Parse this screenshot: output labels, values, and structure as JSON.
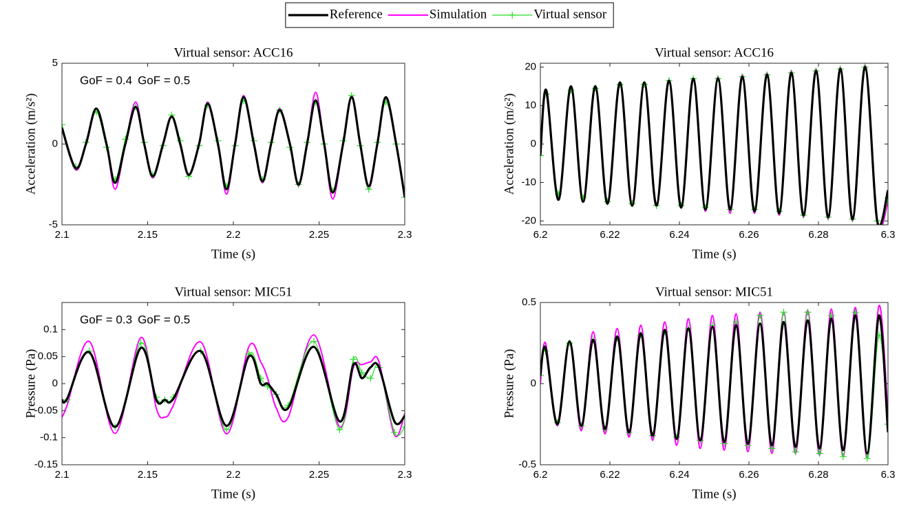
{
  "chart_data": [
    {
      "type": "line",
      "title": "Virtual sensor: ACC16",
      "xlabel": "Time (s)",
      "ylabel": "Acceleration (m/s²)",
      "legend": "top",
      "annotations": [
        {
          "text": "GoF = 0.4",
          "color": "#ff00ff"
        },
        {
          "text": "GoF = 0.5",
          "color": "#22ee22"
        }
      ],
      "xlim": [
        2.1,
        2.3
      ],
      "xticks": [
        2.1,
        2.15,
        2.2,
        2.25,
        2.3
      ],
      "ylim": [
        -5,
        5
      ],
      "yticks": [
        -5,
        0,
        5
      ],
      "x": [
        2.1,
        2.108,
        2.114,
        2.12,
        2.126,
        2.131,
        2.137,
        2.143,
        2.148,
        2.153,
        2.159,
        2.164,
        2.169,
        2.174,
        2.18,
        2.185,
        2.191,
        2.196,
        2.201,
        2.206,
        2.212,
        2.217,
        2.222,
        2.227,
        2.233,
        2.238,
        2.243,
        2.248,
        2.253,
        2.258,
        2.264,
        2.269,
        2.274,
        2.279,
        2.284,
        2.289,
        2.295,
        2.3
      ],
      "series": [
        {
          "name": "Reference",
          "color": "#000000",
          "values": [
            1.0,
            -1.5,
            0,
            2.2,
            0,
            -2.4,
            0,
            2.3,
            0,
            -2.0,
            0,
            1.7,
            0,
            -1.9,
            0,
            2.5,
            0,
            -2.8,
            0,
            2.9,
            0,
            -2.3,
            0,
            2.1,
            0,
            -2.5,
            0,
            2.7,
            0,
            -3.0,
            0,
            2.9,
            0,
            -2.6,
            0,
            2.9,
            0,
            -3.3
          ]
        },
        {
          "name": "Simulation",
          "color": "#ff00ff",
          "values": [
            1.0,
            -1.6,
            0,
            2.2,
            0,
            -2.8,
            0,
            2.6,
            0,
            -2.1,
            0,
            1.7,
            0,
            -2.0,
            0,
            2.6,
            0,
            -3.1,
            0,
            3.0,
            0,
            -2.4,
            0,
            2.2,
            0,
            -2.6,
            0,
            3.2,
            0,
            -3.4,
            0,
            3.0,
            0,
            -2.8,
            0,
            2.8,
            0,
            -3.3
          ]
        },
        {
          "name": "Virtual sensor",
          "color": "#22dd22",
          "values": [
            1.2,
            -1.4,
            0.1,
            2.0,
            -0.2,
            -2.2,
            0.3,
            2.3,
            0.1,
            -1.9,
            -0.1,
            1.8,
            0.2,
            -2.0,
            -0.1,
            2.4,
            0.2,
            -2.6,
            -0.1,
            2.7,
            0.2,
            -2.2,
            0.1,
            2.1,
            -0.2,
            -2.5,
            0.1,
            2.6,
            0.0,
            -2.9,
            0.2,
            3.0,
            -0.1,
            -2.8,
            0.1,
            2.6,
            0.0,
            -3.3
          ]
        }
      ]
    },
    {
      "type": "line",
      "title": "Virtual sensor: ACC16",
      "xlabel": "Time (s)",
      "ylabel": "Acceleration (m/s²)",
      "xlim": [
        6.2,
        6.3
      ],
      "xticks": [
        6.2,
        6.22,
        6.24,
        6.26,
        6.28,
        6.3
      ],
      "ylim": [
        -21,
        21
      ],
      "yticks": [
        -20,
        -10,
        0,
        10,
        20
      ],
      "x": [
        6.2,
        6.2017,
        6.2052,
        6.2088,
        6.2123,
        6.2158,
        6.2193,
        6.2229,
        6.2264,
        6.2299,
        6.2334,
        6.237,
        6.2405,
        6.244,
        6.2475,
        6.2511,
        6.2546,
        6.2581,
        6.2616,
        6.2652,
        6.2687,
        6.2722,
        6.2757,
        6.2793,
        6.2828,
        6.2863,
        6.2898,
        6.2934,
        6.2969,
        6.3
      ],
      "series": [
        {
          "color": "#000000",
          "values": [
            -3,
            14,
            -14.5,
            15,
            -15,
            15,
            -15.5,
            16,
            -16,
            16,
            -16,
            16.5,
            -16.5,
            17,
            -17,
            17,
            -17,
            17.5,
            -17.5,
            18,
            -18,
            18.5,
            -18.5,
            19,
            -19,
            19.5,
            -19.5,
            20,
            -20,
            -12
          ]
        },
        {
          "color": "#ff00ff",
          "values": [
            -2,
            13,
            -14,
            14.5,
            -14.5,
            15,
            -15,
            15.5,
            -15.5,
            16,
            -16,
            16.5,
            -16.5,
            17,
            -17.5,
            17.5,
            -18,
            18,
            -18,
            18.5,
            -18.5,
            19,
            -19,
            19.5,
            -19.5,
            20,
            -20,
            20.5,
            -20.5,
            -15
          ]
        },
        {
          "color": "#22dd22",
          "values": [
            -3,
            13,
            -13,
            14,
            -14,
            14.5,
            -15,
            15.5,
            -15.5,
            15.5,
            -16,
            16.5,
            -16,
            17,
            -16.5,
            17,
            -17,
            17.5,
            -17,
            18,
            -17.5,
            18.5,
            -18.5,
            19,
            -19,
            19.5,
            -19.5,
            20,
            -20,
            -14
          ]
        }
      ]
    },
    {
      "type": "line",
      "title": "Virtual sensor: MIC51",
      "xlabel": "Time (s)",
      "ylabel": "Pressure (Pa)",
      "annotations": [
        {
          "text": "GoF = 0.3",
          "color": "#ff00ff"
        },
        {
          "text": "GoF = 0.5",
          "color": "#22ee22"
        }
      ],
      "xlim": [
        2.1,
        2.3
      ],
      "xticks": [
        2.1,
        2.15,
        2.2,
        2.25,
        2.3
      ],
      "ylim": [
        -0.15,
        0.15
      ],
      "yticks": [
        -0.15,
        -0.1,
        -0.05,
        0,
        0.05,
        0.1
      ],
      "x": [
        2.1,
        2.103,
        2.116,
        2.131,
        2.146,
        2.155,
        2.16,
        2.165,
        2.181,
        2.196,
        2.209,
        2.216,
        2.22,
        2.225,
        2.232,
        2.247,
        2.262,
        2.27,
        2.275,
        2.28,
        2.285,
        2.294,
        2.3
      ],
      "series": [
        {
          "color": "#000000",
          "values": [
            -0.03,
            -0.028,
            0.058,
            -0.08,
            0.066,
            -0.03,
            -0.03,
            -0.028,
            0.06,
            -0.078,
            0.05,
            0.0,
            0.0,
            -0.02,
            -0.045,
            0.068,
            -0.07,
            0.035,
            0.01,
            0.03,
            0.03,
            -0.07,
            -0.06
          ]
        },
        {
          "color": "#ff00ff",
          "values": [
            -0.062,
            -0.04,
            0.078,
            -0.092,
            0.085,
            -0.045,
            -0.062,
            -0.04,
            0.077,
            -0.093,
            0.068,
            0.04,
            0.01,
            -0.045,
            -0.062,
            0.09,
            -0.08,
            0.03,
            0.035,
            0.04,
            0.04,
            -0.095,
            -0.055
          ]
        },
        {
          "color": "#22dd22",
          "values": [
            -0.03,
            -0.03,
            0.06,
            -0.08,
            0.075,
            -0.025,
            -0.03,
            -0.025,
            0.06,
            -0.085,
            0.055,
            0.01,
            -0.005,
            -0.02,
            -0.04,
            0.078,
            -0.085,
            0.045,
            0.02,
            0.01,
            0.03,
            -0.09,
            -0.08
          ]
        }
      ]
    },
    {
      "type": "line",
      "title": "Virtual sensor: MIC51",
      "xlabel": "Time (s)",
      "ylabel": "Pressure (Pa)",
      "xlim": [
        6.2,
        6.3
      ],
      "xticks": [
        6.2,
        6.22,
        6.24,
        6.26,
        6.28,
        6.3
      ],
      "ylim": [
        -0.5,
        0.5
      ],
      "yticks": [
        -0.5,
        0,
        0.5
      ],
      "x": [
        6.2,
        6.2015,
        6.2049,
        6.2084,
        6.2118,
        6.2152,
        6.2186,
        6.2221,
        6.2255,
        6.2289,
        6.2323,
        6.2358,
        6.2392,
        6.2426,
        6.246,
        6.2495,
        6.2529,
        6.2563,
        6.2597,
        6.2632,
        6.2666,
        6.27,
        6.2734,
        6.2769,
        6.2803,
        6.2837,
        6.2871,
        6.2906,
        6.294,
        6.2974,
        6.3
      ],
      "series": [
        {
          "color": "#000000",
          "values": [
            0.05,
            0.22,
            -0.25,
            0.26,
            -0.26,
            0.27,
            -0.28,
            0.29,
            -0.3,
            0.31,
            -0.32,
            0.33,
            -0.34,
            0.34,
            -0.35,
            0.35,
            -0.36,
            0.36,
            -0.37,
            0.37,
            -0.38,
            0.38,
            -0.39,
            0.39,
            -0.4,
            0.4,
            -0.41,
            0.42,
            -0.43,
            0.42,
            -0.3
          ]
        },
        {
          "color": "#ff00ff",
          "values": [
            0.0,
            0.25,
            -0.26,
            0.26,
            -0.29,
            0.32,
            -0.31,
            0.34,
            -0.33,
            0.36,
            -0.35,
            0.38,
            -0.38,
            0.4,
            -0.4,
            0.42,
            -0.41,
            0.43,
            -0.42,
            0.44,
            -0.43,
            0.44,
            -0.43,
            0.45,
            -0.44,
            0.46,
            -0.45,
            0.47,
            -0.46,
            0.48,
            -0.2
          ]
        },
        {
          "color": "#22dd22",
          "values": [
            0.05,
            0.2,
            -0.24,
            0.25,
            -0.26,
            0.27,
            -0.28,
            0.28,
            -0.3,
            0.3,
            -0.32,
            0.32,
            -0.33,
            0.34,
            -0.35,
            0.36,
            -0.37,
            0.38,
            -0.38,
            0.42,
            -0.4,
            0.44,
            -0.42,
            0.44,
            -0.43,
            0.42,
            -0.45,
            0.44,
            -0.46,
            0.3,
            -0.25
          ]
        }
      ]
    }
  ]
}
